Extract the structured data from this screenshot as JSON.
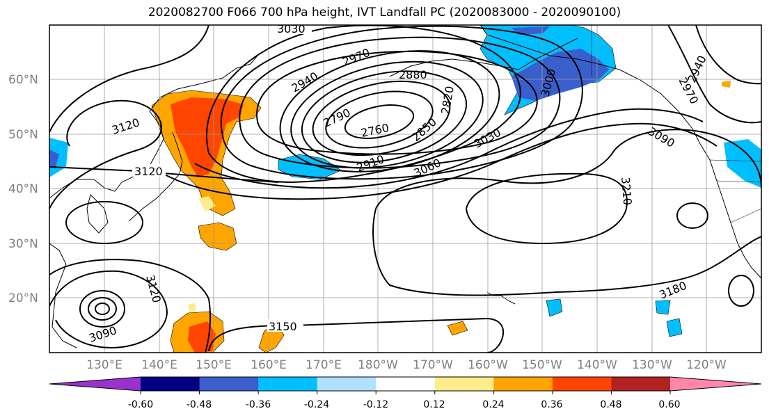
{
  "title": "2020082700 F066 700 hPa height, IVT Landfall PC (2020083000 - 2020090100)",
  "map": {
    "lat_labels": [
      "60°N",
      "50°N",
      "40°N",
      "30°N",
      "20°N"
    ],
    "lon_labels": [
      "130°E",
      "140°E",
      "150°E",
      "160°E",
      "170°E",
      "180°W",
      "170°W",
      "160°W",
      "150°W",
      "140°W",
      "130°W",
      "120°W"
    ],
    "contour_labels": [
      "3030",
      "2970",
      "2940",
      "2880",
      "2820",
      "2790",
      "2760",
      "2850",
      "2910",
      "3030",
      "3060",
      "3000",
      "2940",
      "2970",
      "3090",
      "3120",
      "3120",
      "3210",
      "3120",
      "3090",
      "3150",
      "3180"
    ]
  },
  "colorbar": {
    "colors": [
      "#9932CC",
      "#000080",
      "#3A5FCD",
      "#00BFFF",
      "#B0E2FF",
      "#FFFFFF",
      "#FFEC8B",
      "#FFA500",
      "#FF4500",
      "#B22222",
      "#FF88AA"
    ],
    "tick_labels": [
      "-0.60",
      "-0.48",
      "-0.36",
      "-0.24",
      "-0.12",
      "0.12",
      "0.24",
      "0.36",
      "0.48",
      "0.60"
    ]
  }
}
